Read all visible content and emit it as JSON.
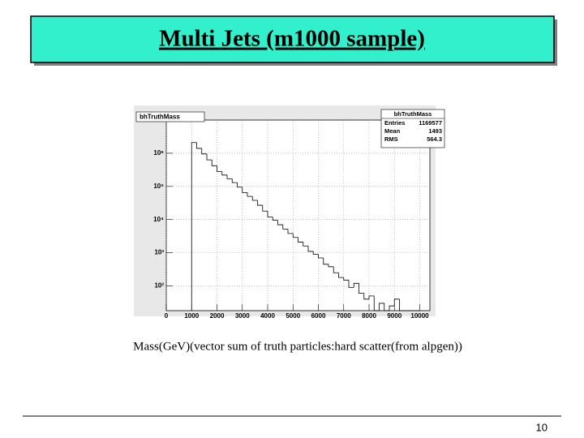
{
  "slide_title": "Multi Jets (m1000 sample)",
  "page_number": "10",
  "chart_data": {
    "type": "histogram",
    "title": "bhTruthMass",
    "xlabel": "Mass(GeV)(vector sum of truth particles:hard scatter(from alpgen))",
    "bins": [
      1000,
      1200,
      1400,
      1600,
      1800,
      2000,
      2200,
      2400,
      2600,
      2800,
      3000,
      3200,
      3400,
      3600,
      3800,
      4000,
      4200,
      4400,
      4600,
      4800,
      5000,
      5200,
      5400,
      5600,
      5800,
      6000,
      6200,
      6400,
      6600,
      6800,
      7000,
      7200,
      7400,
      7600,
      7800,
      8000,
      8200,
      8400,
      8600,
      8800,
      9000,
      9200,
      9400,
      9600,
      9800,
      10000
    ],
    "values": [
      2100000,
      1400000,
      950000,
      630000,
      420000,
      280000,
      220000,
      170000,
      130000,
      95000,
      65000,
      50000,
      38000,
      27000,
      18000,
      12000,
      9500,
      7000,
      5200,
      3800,
      2900,
      2100,
      1600,
      1100,
      900,
      700,
      450,
      380,
      250,
      180,
      150,
      90,
      120,
      60,
      40,
      50,
      0,
      30,
      0,
      25,
      40,
      0,
      0,
      0,
      0
    ],
    "color": "#000000",
    "log_y": true,
    "grid": true,
    "xlim": [
      0,
      10400
    ],
    "xticks": [
      0,
      1000,
      2000,
      3000,
      4000,
      5000,
      6000,
      7000,
      8000,
      9000,
      10000
    ],
    "ylim": [
      18,
      10000000
    ],
    "yticks": [
      {
        "value": 100,
        "label": "10²"
      },
      {
        "value": 1000,
        "label": "10³"
      },
      {
        "value": 10000,
        "label": "10⁴"
      },
      {
        "value": 100000,
        "label": "10⁵"
      },
      {
        "value": 1000000,
        "label": "10⁶"
      }
    ],
    "stats": {
      "name": "bhTruthMass",
      "rows": [
        [
          "Entries",
          1169577
        ],
        [
          "Mean",
          1493
        ],
        [
          "RMS",
          564.3
        ]
      ]
    }
  }
}
